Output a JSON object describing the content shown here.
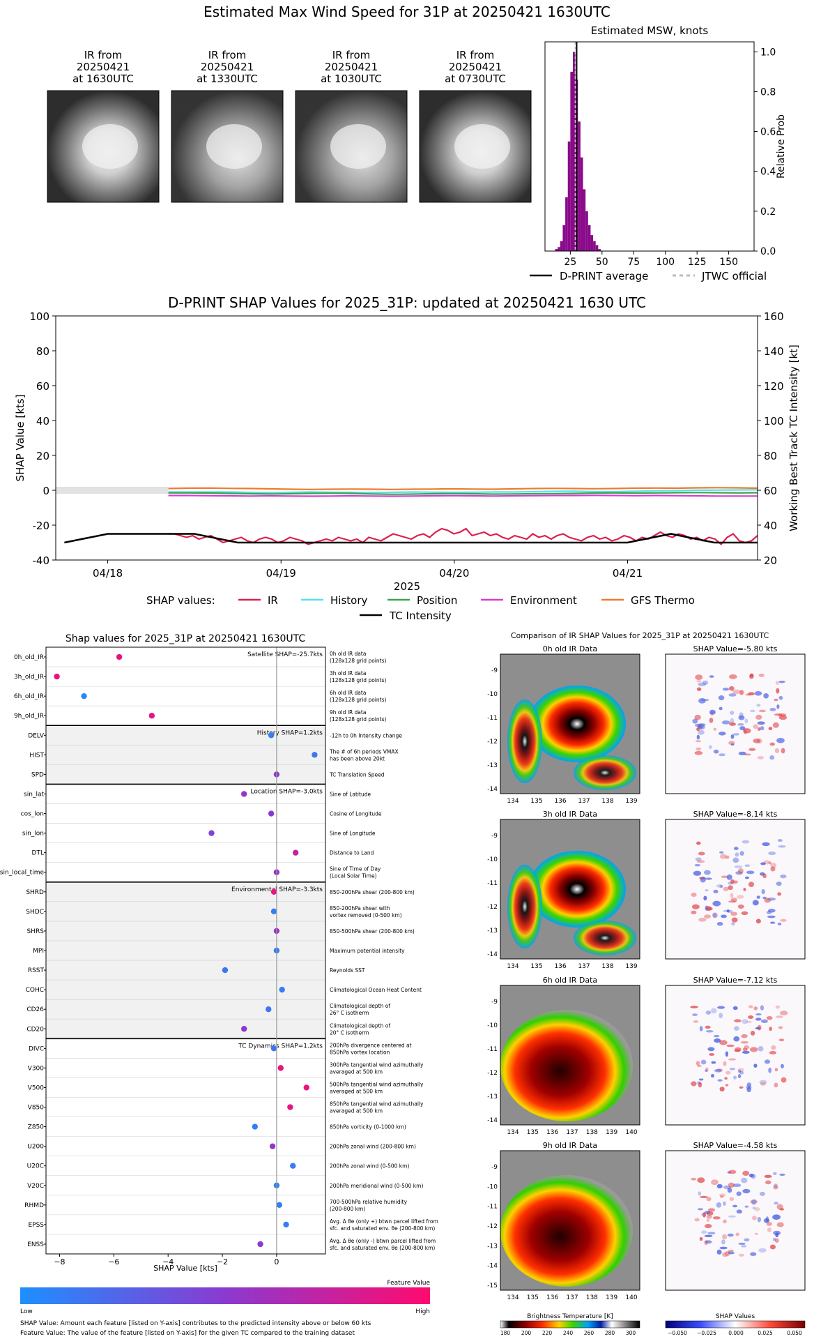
{
  "colors": {
    "ir": "#dc1f4f",
    "history": "#55e1f0",
    "position": "#3aa648",
    "environment": "#d93ad7",
    "gfs": "#f07a2c",
    "tc": "#000000",
    "hist_bar": "#8a0a8a",
    "feature_low": "#1e8fff",
    "feature_high": "#ff0a6e"
  },
  "page_title": "Estimated Max Wind Speed for 31P at 20250421 1630UTC",
  "ir_thumbs": [
    {
      "line1": "IR from",
      "line2": "20250421",
      "line3": "at 1630UTC"
    },
    {
      "line1": "IR from",
      "line2": "20250421",
      "line3": "at 1330UTC"
    },
    {
      "line1": "IR from",
      "line2": "20250421",
      "line3": "at 1030UTC"
    },
    {
      "line1": "IR from",
      "line2": "20250421",
      "line3": "at 0730UTC"
    }
  ],
  "chart_data": [
    {
      "type": "bar",
      "title": "Estimated MSW, knots",
      "ylabel": "Relative Prob",
      "xlim": [
        5,
        170
      ],
      "ylim": [
        0,
        1.05
      ],
      "x_ticks": [
        "25",
        "50",
        "75",
        "100",
        "125",
        "150"
      ],
      "y_ticks": [
        "0.0",
        "0.2",
        "0.4",
        "0.6",
        "0.8",
        "1.0"
      ],
      "bin_width": 2,
      "bins": [
        {
          "x": 14,
          "y": 0.01
        },
        {
          "x": 16,
          "y": 0.02
        },
        {
          "x": 18,
          "y": 0.05
        },
        {
          "x": 20,
          "y": 0.13
        },
        {
          "x": 22,
          "y": 0.27
        },
        {
          "x": 24,
          "y": 0.55
        },
        {
          "x": 26,
          "y": 0.9
        },
        {
          "x": 28,
          "y": 1.0
        },
        {
          "x": 30,
          "y": 0.86
        },
        {
          "x": 32,
          "y": 0.65
        },
        {
          "x": 34,
          "y": 0.47
        },
        {
          "x": 36,
          "y": 0.31
        },
        {
          "x": 38,
          "y": 0.2
        },
        {
          "x": 40,
          "y": 0.13
        },
        {
          "x": 42,
          "y": 0.08
        },
        {
          "x": 44,
          "y": 0.05
        },
        {
          "x": 46,
          "y": 0.03
        },
        {
          "x": 48,
          "y": 0.01
        }
      ],
      "dprint_average": 30,
      "jtwc_official": 29,
      "legend": {
        "dprint": "D-PRINT average",
        "jtwc": "JTWC official"
      }
    },
    {
      "type": "line",
      "title": "D-PRINT SHAP Values for 2025_31P: updated at 20250421 1630 UTC",
      "ylabel": "SHAP Value [kts]",
      "y2label": "Working Best Track TC Intensity [kt]",
      "xlabel": "2025",
      "x_ticks": [
        "04/18",
        "04/19",
        "04/20",
        "04/21"
      ],
      "x_tick_days": [
        18,
        19,
        20,
        21
      ],
      "xlim_days": [
        17.7,
        21.75
      ],
      "ylim": [
        -40,
        100
      ],
      "y_ticks": [
        "-40",
        "-20",
        "0",
        "20",
        "40",
        "60",
        "80",
        "100"
      ],
      "y2lim": [
        20,
        160
      ],
      "y2_ticks": [
        "20",
        "40",
        "60",
        "80",
        "100",
        "120",
        "140",
        "160"
      ],
      "series_start_day": 18.35,
      "series_end_day": 21.75,
      "series": [
        {
          "name": "IR",
          "color_key": "ir",
          "values": [
            -25,
            -25,
            -26,
            -27,
            -26,
            -28,
            -27,
            -26,
            -28,
            -30,
            -29,
            -28,
            -27,
            -29,
            -30,
            -28,
            -27,
            -28,
            -30,
            -29,
            -27,
            -28,
            -29,
            -31,
            -30,
            -29,
            -28,
            -29,
            -27,
            -28,
            -29,
            -28,
            -30,
            -27,
            -28,
            -29,
            -27,
            -25,
            -26,
            -27,
            -28,
            -26,
            -25,
            -27,
            -24,
            -22,
            -23,
            -25,
            -24,
            -22,
            -26,
            -25,
            -24,
            -26,
            -25,
            -27,
            -28,
            -26,
            -27,
            -28,
            -25,
            -27,
            -26,
            -28,
            -26,
            -25,
            -27,
            -28,
            -29,
            -27,
            -26,
            -28,
            -27,
            -29,
            -28,
            -26,
            -27,
            -29,
            -27,
            -28,
            -26,
            -24,
            -26,
            -27,
            -25,
            -26,
            -28,
            -27,
            -29,
            -27,
            -28,
            -31,
            -27,
            -25,
            -29,
            -30,
            -29,
            -26
          ]
        },
        {
          "name": "History",
          "color_key": "history",
          "values": [
            -1,
            -1,
            -1,
            -1,
            -1.2,
            -1.3,
            -1.2,
            -1,
            -1.1,
            -1.2,
            -1.3,
            -1.2,
            -1,
            -1.1,
            -1.2,
            -1.1,
            -1,
            -1,
            -0.8,
            -0.6,
            -0.5,
            -0.7,
            -0.8,
            -0.5,
            -0.3,
            -0.2,
            0,
            0.1,
            0.2,
            0.3
          ]
        },
        {
          "name": "Position",
          "color_key": "position",
          "values": [
            -1.5,
            -1.5,
            -1.6,
            -1.8,
            -2,
            -2.1,
            -2,
            -1.8,
            -1.7,
            -1.8,
            -2.1,
            -2.3,
            -2.2,
            -2,
            -1.9,
            -2,
            -2.2,
            -2.1,
            -2,
            -1.9,
            -1.8,
            -1.6,
            -1.5,
            -1.6,
            -1.5,
            -1.4,
            -1.3,
            -1.4,
            -1.5,
            -1.4
          ]
        },
        {
          "name": "Environment",
          "color_key": "environment",
          "values": [
            -3,
            -3,
            -3.1,
            -3.2,
            -3.3,
            -3.2,
            -3.3,
            -3.4,
            -3.3,
            -3.2,
            -3.3,
            -3.4,
            -3.3,
            -3.2,
            -3.1,
            -3.2,
            -3.3,
            -3.2,
            -3.1,
            -3,
            -3,
            -2.9,
            -3,
            -3.1,
            -3,
            -3.1,
            -3.2,
            -3.3,
            -3.3,
            -3.3
          ]
        },
        {
          "name": "GFS Thermo",
          "color_key": "gfs",
          "values": [
            1,
            1.2,
            1.3,
            1.1,
            1,
            0.8,
            0.6,
            0.5,
            0.6,
            0.7,
            0.6,
            0.5,
            0.6,
            0.7,
            0.8,
            0.7,
            0.6,
            0.8,
            1,
            1.1,
            1,
            0.9,
            1,
            1.2,
            1.3,
            1.2,
            1.4,
            1.5,
            1.4,
            1.2
          ]
        }
      ],
      "tc_intensity": {
        "name": "TC Intensity",
        "points": [
          [
            17.75,
            30
          ],
          [
            18.0,
            35
          ],
          [
            18.5,
            35
          ],
          [
            18.75,
            30
          ],
          [
            19.0,
            30
          ],
          [
            19.5,
            30
          ],
          [
            20.0,
            30
          ],
          [
            20.5,
            30
          ],
          [
            21.0,
            30
          ],
          [
            21.25,
            35
          ],
          [
            21.5,
            30
          ],
          [
            21.75,
            30
          ]
        ]
      },
      "legend": {
        "label": "SHAP values:",
        "ir": "IR",
        "history": "History",
        "position": "Position",
        "environment": "Environment",
        "gfs": "GFS Thermo",
        "tc": "TC Intensity"
      }
    },
    {
      "type": "scatter",
      "title": "Shap values for 2025_31P at 20250421 1630UTC",
      "xlabel": "SHAP Value [kts]",
      "xlim": [
        -8.5,
        1.8
      ],
      "x_ticks": [
        -8,
        -6,
        -4,
        -2,
        0
      ],
      "x_tick_labels": [
        "−8",
        "−6",
        "−4",
        "−2",
        "0"
      ],
      "groups": [
        {
          "label": "Satellite SHAP=-25.7kts",
          "shaded": false,
          "features": [
            {
              "name": "0h_old_IR",
              "value": -5.8,
              "fv": 0.9,
              "desc": [
                "0h old IR data",
                "(128x128 grid points)"
              ]
            },
            {
              "name": "3h_old_IR",
              "value": -8.1,
              "fv": 0.92,
              "desc": [
                "3h old IR data",
                "(128x128 grid points)"
              ]
            },
            {
              "name": "6h_old_IR",
              "value": -7.1,
              "fv": 0.05,
              "desc": [
                "6h old IR data",
                "(128x128 grid points)"
              ]
            },
            {
              "name": "9h_old_IR",
              "value": -4.6,
              "fv": 0.88,
              "desc": [
                "9h old IR data",
                "(128x128 grid points)"
              ]
            }
          ]
        },
        {
          "label": "History SHAP=1.2kts",
          "shaded": true,
          "features": [
            {
              "name": "DELV",
              "value": -0.2,
              "fv": 0.1,
              "desc": [
                "-12h to 0h Intensity change"
              ]
            },
            {
              "name": "HIST",
              "value": 1.4,
              "fv": 0.15,
              "desc": [
                "The # of 6h periods VMAX",
                "has been above 20kt"
              ]
            },
            {
              "name": "SPD",
              "value": 0.0,
              "fv": 0.5,
              "desc": [
                "TC Translation Speed"
              ]
            }
          ]
        },
        {
          "label": "Location SHAP=-3.0kts",
          "shaded": false,
          "features": [
            {
              "name": "sin_lat",
              "value": -1.2,
              "fv": 0.55,
              "desc": [
                "Sine of Latitude"
              ]
            },
            {
              "name": "cos_lon",
              "value": -0.2,
              "fv": 0.5,
              "desc": [
                "Cosine of Longitude"
              ]
            },
            {
              "name": "sin_lon",
              "value": -2.4,
              "fv": 0.45,
              "desc": [
                "Sine of Longitude"
              ]
            },
            {
              "name": "DTL",
              "value": 0.7,
              "fv": 0.75,
              "desc": [
                "Distance to Land"
              ]
            },
            {
              "name": "sin_local_time",
              "value": 0.0,
              "fv": 0.55,
              "desc": [
                "Sine of Time of Day",
                "(Local Solar Time)"
              ]
            }
          ]
        },
        {
          "label": "Environmental SHAP=-3.3kts",
          "shaded": true,
          "features": [
            {
              "name": "SHRD",
              "value": -0.1,
              "fv": 0.9,
              "desc": [
                "850-200hPa shear (200-800 km)"
              ]
            },
            {
              "name": "SHDC",
              "value": -0.1,
              "fv": 0.1,
              "desc": [
                "850-200hPa shear with",
                "vortex removed (0-500 km)"
              ]
            },
            {
              "name": "SHRS",
              "value": 0.0,
              "fv": 0.55,
              "desc": [
                "850-500hPa shear (200-800 km)"
              ]
            },
            {
              "name": "MPI",
              "value": 0.0,
              "fv": 0.1,
              "desc": [
                "Maximum potential intensity"
              ]
            },
            {
              "name": "RSST",
              "value": -1.9,
              "fv": 0.15,
              "desc": [
                "Reynolds SST"
              ]
            },
            {
              "name": "COHC",
              "value": 0.2,
              "fv": 0.1,
              "desc": [
                "Climatological Ocean Heat Content"
              ]
            },
            {
              "name": "CD26",
              "value": -0.3,
              "fv": 0.15,
              "desc": [
                "Climatological depth of",
                "26° C isotherm"
              ]
            },
            {
              "name": "CD20",
              "value": -1.2,
              "fv": 0.5,
              "desc": [
                "Climatological depth of",
                "20° C isotherm"
              ]
            }
          ]
        },
        {
          "label": "TC Dynamics SHAP=1.2kts",
          "shaded": false,
          "features": [
            {
              "name": "DIVC",
              "value": -0.1,
              "fv": 0.15,
              "desc": [
                "200hPa divergence centered at",
                "850hPa vortex location"
              ]
            },
            {
              "name": "V300",
              "value": 0.15,
              "fv": 0.92,
              "desc": [
                "300hPa tangential wind azimuthally",
                "averaged at 500 km"
              ]
            },
            {
              "name": "V500",
              "value": 1.1,
              "fv": 0.93,
              "desc": [
                "500hPa tangential wind azimuthally",
                "averaged at 500 km"
              ]
            },
            {
              "name": "V850",
              "value": 0.5,
              "fv": 0.9,
              "desc": [
                "850hPa tangential wind azimuthally",
                "averaged at 500 km"
              ]
            },
            {
              "name": "Z850",
              "value": -0.8,
              "fv": 0.1,
              "desc": [
                "850hPa vorticity (0-1000 km)"
              ]
            },
            {
              "name": "U200",
              "value": -0.15,
              "fv": 0.55,
              "desc": [
                "200hPa zonal wind (200-800 km)"
              ]
            },
            {
              "name": "U20C",
              "value": 0.6,
              "fv": 0.1,
              "desc": [
                "200hPa zonal wind (0-500 km)"
              ]
            },
            {
              "name": "V20C",
              "value": 0.0,
              "fv": 0.1,
              "desc": [
                "200hPa meridional wind (0-500 km)"
              ]
            },
            {
              "name": "RHMD",
              "value": 0.1,
              "fv": 0.1,
              "desc": [
                "700-500hPa relative humidity",
                "(200-800 km)"
              ]
            },
            {
              "name": "EPSS",
              "value": 0.35,
              "fv": 0.1,
              "desc": [
                "Avg. Δ θe (only +) btwn parcel lifted from",
                "sfc. and saturated env. θe (200-800 km)"
              ]
            },
            {
              "name": "ENSS",
              "value": -0.6,
              "fv": 0.5,
              "desc": [
                "Avg. Δ θe (only -) btwn parcel lifted from",
                "sfc. and saturated env. θe (200-800 km)"
              ]
            }
          ]
        }
      ]
    }
  ],
  "feature_bar": {
    "title": "Feature Value",
    "low": "Low",
    "high": "High"
  },
  "footnotes": {
    "line1": "SHAP Value: Amount each feature [listed on Y-axis] contributes to the predicted intensity above or below 60 kts",
    "line2": "Feature Value: The value of the feature [listed on Y-axis] for the given TC compared to the training dataset"
  },
  "ir_compare": {
    "title": "Comparison of IR SHAP Values for 2025_31P at 20250421 1630UTC",
    "panels": [
      {
        "ir_title": "0h old IR Data",
        "shap_title": "SHAP Value=-5.80 kts",
        "y_ticks": [
          "-9",
          "-10",
          "-11",
          "-12",
          "-13",
          "-14"
        ],
        "x_ticks": [
          "134",
          "135",
          "136",
          "137",
          "138",
          "139"
        ]
      },
      {
        "ir_title": "3h old IR Data",
        "shap_title": "SHAP Value=-8.14 kts",
        "y_ticks": [
          "-9",
          "-10",
          "-11",
          "-12",
          "-13",
          "-14"
        ],
        "x_ticks": [
          "134",
          "135",
          "136",
          "137",
          "138",
          "139"
        ]
      },
      {
        "ir_title": "6h old IR Data",
        "shap_title": "SHAP Value=-7.12 kts",
        "y_ticks": [
          "-9",
          "-10",
          "-11",
          "-12",
          "-13",
          "-14"
        ],
        "x_ticks": [
          "134",
          "135",
          "136",
          "137",
          "138",
          "139",
          "140"
        ]
      },
      {
        "ir_title": "9h old IR Data",
        "shap_title": "SHAP Value=-4.58 kts",
        "y_ticks": [
          "-9",
          "-10",
          "-11",
          "-12",
          "-13",
          "-14",
          "-15"
        ],
        "x_ticks": [
          "134",
          "135",
          "136",
          "137",
          "138",
          "139",
          "140"
        ]
      }
    ],
    "bt_title": "Brightness Temperature [K]",
    "bt_ticks": [
      "180",
      "200",
      "220",
      "240",
      "260",
      "280",
      "300"
    ],
    "shap_cb_title": "SHAP Values",
    "shap_cb_ticks": [
      "−0.050",
      "−0.025",
      "0.000",
      "0.025",
      "0.050"
    ]
  }
}
